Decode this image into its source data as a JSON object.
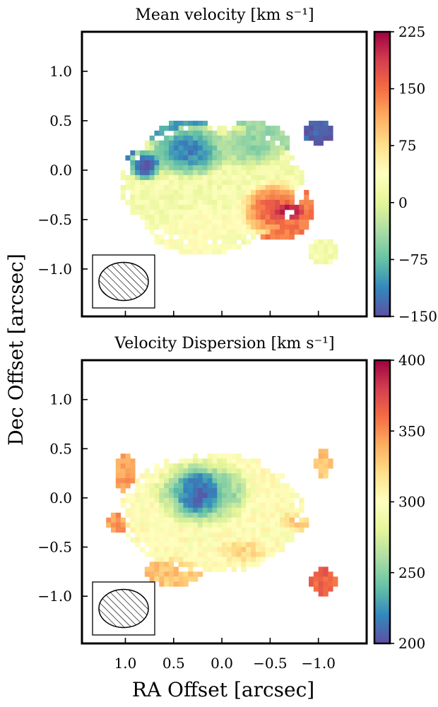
{
  "chart_data": [
    {
      "type": "heatmap",
      "title": "Mean velocity [km s⁻¹]",
      "xlabel": "RA Offset [arcsec]",
      "ylabel": "Dec Offset [arcsec]",
      "xlim": [
        1.45,
        -1.5
      ],
      "ylim": [
        -1.48,
        1.4
      ],
      "x_ticks": [
        1.0,
        0.5,
        0.0,
        -0.5,
        -1.0
      ],
      "y_ticks": [
        1.0,
        0.5,
        0.0,
        -0.5,
        -1.0
      ],
      "x_tick_labels": [
        "1.0",
        "0.5",
        "0.0",
        "−0.5",
        "−1.0"
      ],
      "y_tick_labels": [
        "1.0",
        "0.5",
        "0.0",
        "−0.5",
        "−1.0"
      ],
      "colorbar": {
        "min": -150,
        "max": 225,
        "ticks": [
          225,
          150,
          75,
          0,
          -75,
          -150
        ],
        "tick_labels": [
          "225",
          "150",
          "75",
          "0",
          "−75",
          "−150"
        ]
      },
      "colormap": [
        "#5e4fa2",
        "#3288bd",
        "#66c2a5",
        "#abdda4",
        "#e6f598",
        "#ffffbf",
        "#fee08b",
        "#fdae61",
        "#f46d43",
        "#d53e4f",
        "#9e0142"
      ],
      "beam": {
        "position": "bottom-left",
        "hatched": true
      },
      "pixel_size_arcsec": 0.05,
      "regions": [
        {
          "shape": "ellipse",
          "cx": 0.1,
          "cy": -0.15,
          "rx": 0.95,
          "ry": 0.62,
          "value": 20
        },
        {
          "shape": "ellipse",
          "cx": 0.35,
          "cy": 0.2,
          "rx": 0.45,
          "ry": 0.3,
          "value": -95
        },
        {
          "shape": "ellipse",
          "cx": 0.8,
          "cy": 0.05,
          "rx": 0.2,
          "ry": 0.18,
          "value": -125
        },
        {
          "shape": "ellipse",
          "cx": -0.3,
          "cy": 0.25,
          "rx": 0.4,
          "ry": 0.25,
          "value": -45
        },
        {
          "shape": "ellipse",
          "cx": 0.2,
          "cy": -0.6,
          "rx": 0.55,
          "ry": 0.25,
          "value": 35
        },
        {
          "shape": "ellipse",
          "cx": -0.55,
          "cy": -0.4,
          "rx": 0.4,
          "ry": 0.32,
          "value": 145
        },
        {
          "shape": "ellipse",
          "cx": -0.7,
          "cy": -0.42,
          "rx": 0.18,
          "ry": 0.1,
          "value": 210
        },
        {
          "shape": "ellipse",
          "cx": -1.0,
          "cy": 0.38,
          "rx": 0.15,
          "ry": 0.12,
          "value": -140
        },
        {
          "shape": "ellipse",
          "cx": -1.05,
          "cy": -0.82,
          "rx": 0.16,
          "ry": 0.13,
          "value": 20
        }
      ],
      "noise": 15
    },
    {
      "type": "heatmap",
      "title": "Velocity Dispersion [km s⁻¹]",
      "xlabel": "RA Offset [arcsec]",
      "ylabel": "Dec Offset [arcsec]",
      "xlim": [
        1.45,
        -1.5
      ],
      "ylim": [
        -1.48,
        1.4
      ],
      "x_ticks": [
        1.0,
        0.5,
        0.0,
        -0.5,
        -1.0
      ],
      "y_ticks": [
        1.0,
        0.5,
        0.0,
        -0.5,
        -1.0
      ],
      "x_tick_labels": [
        "1.0",
        "0.5",
        "0.0",
        "−0.5",
        "−1.0"
      ],
      "y_tick_labels": [
        "1.0",
        "0.5",
        "0.0",
        "−0.5",
        "−1.0"
      ],
      "colorbar": {
        "min": 200,
        "max": 400,
        "ticks": [
          400,
          350,
          300,
          250,
          200
        ],
        "tick_labels": [
          "400",
          "350",
          "300",
          "250",
          "200"
        ]
      },
      "colormap": [
        "#5e4fa2",
        "#3288bd",
        "#66c2a5",
        "#abdda4",
        "#e6f598",
        "#ffffbf",
        "#fee08b",
        "#fdae61",
        "#f46d43",
        "#d53e4f",
        "#9e0142"
      ],
      "beam": {
        "position": "bottom-left",
        "hatched": true
      },
      "pixel_size_arcsec": 0.05,
      "regions": [
        {
          "shape": "ellipse",
          "cx": 0.1,
          "cy": -0.15,
          "rx": 0.95,
          "ry": 0.62,
          "value": 300
        },
        {
          "shape": "ellipse",
          "cx": 0.2,
          "cy": 0.05,
          "rx": 0.55,
          "ry": 0.38,
          "value": 245
        },
        {
          "shape": "ellipse",
          "cx": 0.25,
          "cy": 0.05,
          "rx": 0.25,
          "ry": 0.25,
          "value": 215
        },
        {
          "shape": "ellipse",
          "cx": 1.0,
          "cy": 0.25,
          "rx": 0.12,
          "ry": 0.2,
          "value": 345
        },
        {
          "shape": "ellipse",
          "cx": 1.08,
          "cy": -0.25,
          "rx": 0.12,
          "ry": 0.1,
          "value": 345
        },
        {
          "shape": "ellipse",
          "cx": 0.5,
          "cy": -0.75,
          "rx": 0.3,
          "ry": 0.15,
          "value": 330
        },
        {
          "shape": "ellipse",
          "cx": -0.2,
          "cy": -0.55,
          "rx": 0.3,
          "ry": 0.15,
          "value": 320
        },
        {
          "shape": "ellipse",
          "cx": -1.05,
          "cy": -0.85,
          "rx": 0.15,
          "ry": 0.13,
          "value": 365
        },
        {
          "shape": "ellipse",
          "cx": -1.05,
          "cy": 0.35,
          "rx": 0.08,
          "ry": 0.15,
          "value": 330
        },
        {
          "shape": "ellipse",
          "cx": -0.75,
          "cy": -0.25,
          "rx": 0.15,
          "ry": 0.12,
          "value": 325
        }
      ],
      "noise": 10
    }
  ],
  "figure": {
    "xlabel": "RA Offset [arcsec]",
    "ylabel": "Dec Offset [arcsec]"
  }
}
